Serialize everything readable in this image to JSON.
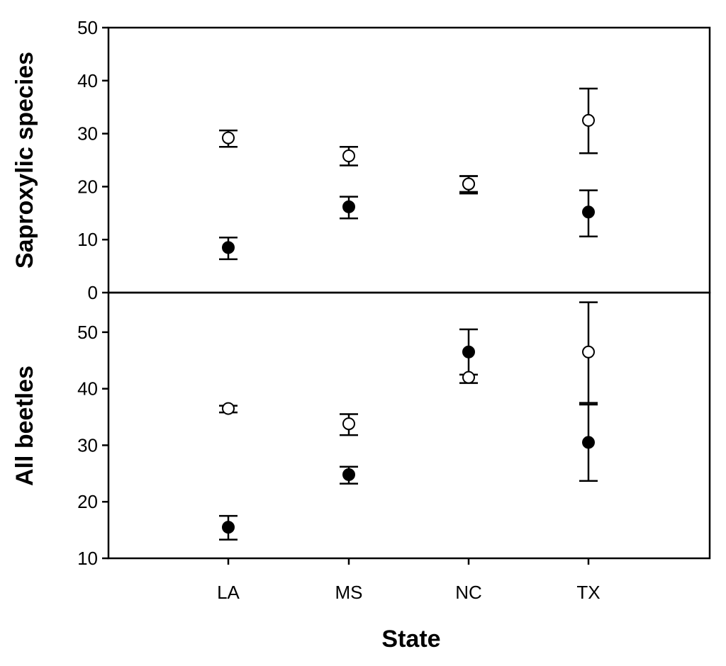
{
  "chart_data": [
    {
      "type": "scatter",
      "title": "",
      "xlabel": "",
      "ylabel": "Saproxylic species",
      "categories": [
        "LA",
        "MS",
        "NC",
        "TX"
      ],
      "ylim": [
        0,
        50
      ],
      "yticks": [
        0,
        10,
        20,
        30,
        40,
        50
      ],
      "grid": false,
      "error_bars": true,
      "series": [
        {
          "marker": "open-circle",
          "fill": "#ffffff",
          "values": [
            29.2,
            25.8,
            20.5,
            32.5
          ],
          "error_low": [
            27.5,
            24.0,
            19.0,
            26.3
          ],
          "error_high": [
            30.6,
            27.5,
            22.0,
            38.5
          ]
        },
        {
          "marker": "filled-circle",
          "fill": "#000000",
          "values": [
            8.5,
            16.2,
            20.5,
            15.2
          ],
          "error_low": [
            6.3,
            14.0,
            18.7,
            10.6
          ],
          "error_high": [
            10.4,
            18.1,
            22.0,
            19.3
          ]
        }
      ]
    },
    {
      "type": "scatter",
      "title": "",
      "xlabel": "State",
      "ylabel": "All beetles",
      "categories": [
        "LA",
        "MS",
        "NC",
        "TX"
      ],
      "ylim": [
        10,
        57
      ],
      "yticks": [
        10,
        20,
        30,
        40,
        50
      ],
      "grid": false,
      "error_bars": true,
      "series": [
        {
          "marker": "open-circle",
          "fill": "#ffffff",
          "values": [
            36.5,
            33.8,
            42.0,
            46.5
          ],
          "error_low": [
            35.8,
            31.8,
            41.0,
            37.5
          ],
          "error_high": [
            37.0,
            35.5,
            42.5,
            55.3
          ]
        },
        {
          "marker": "filled-circle",
          "fill": "#000000",
          "values": [
            15.5,
            24.8,
            46.5,
            30.5
          ],
          "error_low": [
            13.3,
            23.2,
            42.5,
            23.7
          ],
          "error_high": [
            17.5,
            26.2,
            50.5,
            37.2
          ]
        }
      ]
    }
  ]
}
